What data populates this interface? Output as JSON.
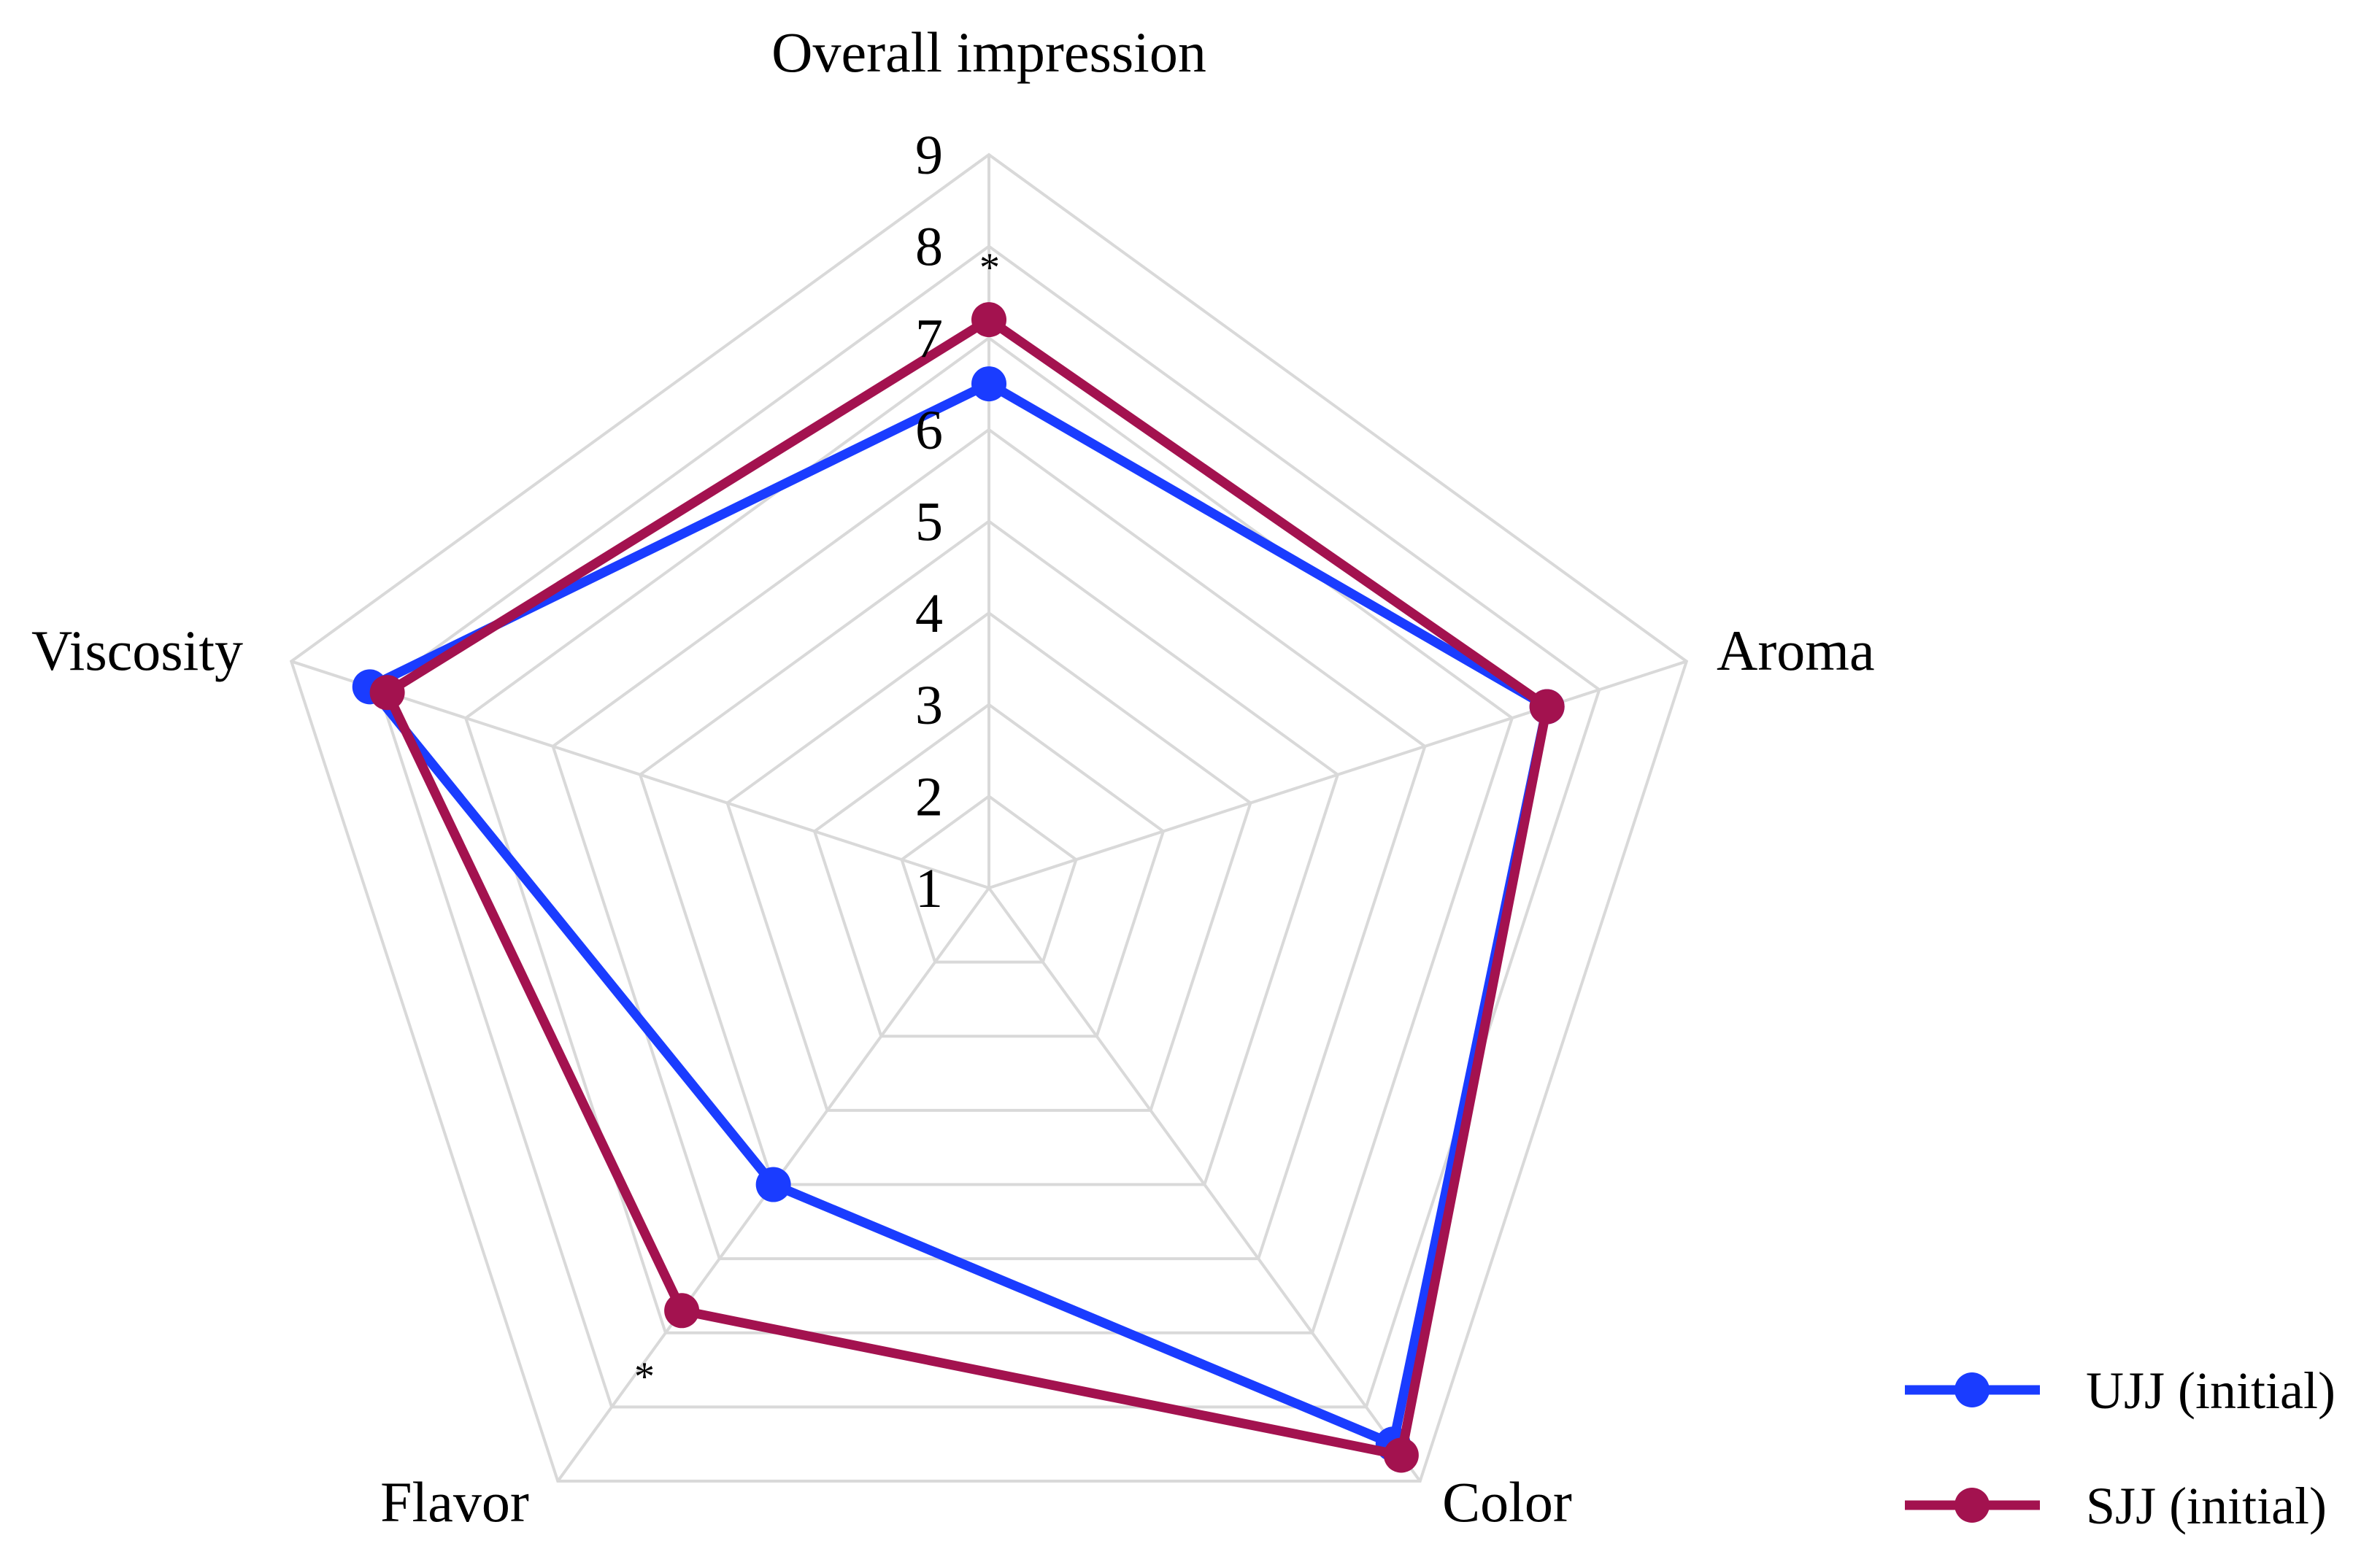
{
  "chart_data": {
    "type": "radar",
    "axes": [
      "Overall impression",
      "Aroma",
      "Color",
      "Flavor",
      "Viscosity"
    ],
    "scale": {
      "min": 1,
      "max": 9,
      "ticks": [
        "1",
        "2",
        "3",
        "4",
        "5",
        "6",
        "7",
        "8",
        "9"
      ]
    },
    "series": [
      {
        "name": "UJJ (initial)",
        "color": "#1a3cff",
        "values": [
          6.5,
          7.4,
          8.5,
          5.0,
          8.1
        ]
      },
      {
        "name": "SJJ (initial)",
        "color": "#a3124f",
        "values": [
          7.2,
          7.4,
          8.65,
          6.7,
          7.9
        ]
      }
    ],
    "annotations": [
      {
        "text": "*",
        "axis": "Overall impression"
      },
      {
        "text": "*",
        "axis": "Flavor"
      }
    ],
    "grid": true,
    "legend_position": "bottom-right"
  }
}
